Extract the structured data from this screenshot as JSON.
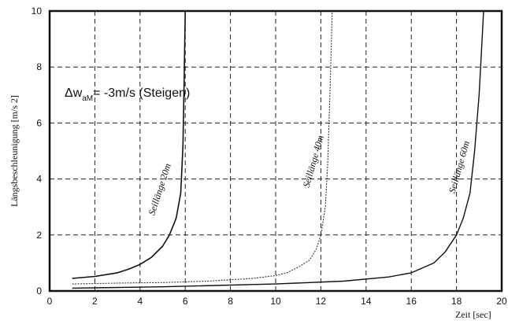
{
  "chart_data": {
    "type": "line",
    "title": "",
    "xlabel": "Zeit  [sec]",
    "ylabel": "Längsbeschleunigung [m/s  2]",
    "xlim": [
      0,
      20
    ],
    "ylim": [
      0,
      10
    ],
    "x_ticks": [
      "0",
      "2",
      "4",
      "6",
      "8",
      "10",
      "12",
      "14",
      "16",
      "18",
      "20"
    ],
    "y_ticks": [
      "0",
      "2",
      "4",
      "6",
      "8",
      "10"
    ],
    "grid": true,
    "annotation": {
      "delta": "Δw",
      "subscript": "aM",
      "rest": "= -3m/s (Steigen)"
    },
    "series": [
      {
        "name": "Seillänge 20m",
        "x": [
          1.0,
          2.0,
          3.0,
          3.5,
          4.0,
          4.5,
          5.0,
          5.3,
          5.6,
          5.8,
          5.9,
          5.95,
          6.0
        ],
        "y": [
          0.45,
          0.52,
          0.65,
          0.78,
          0.95,
          1.2,
          1.6,
          2.0,
          2.6,
          3.5,
          5.2,
          7.5,
          10.0
        ]
      },
      {
        "name": "Seillänge 40m",
        "x": [
          1.0,
          3.0,
          5.0,
          7.0,
          9.0,
          10.0,
          10.5,
          11.0,
          11.5,
          11.8,
          12.0,
          12.2,
          12.3,
          12.4,
          12.5
        ],
        "y": [
          0.25,
          0.28,
          0.3,
          0.35,
          0.45,
          0.55,
          0.65,
          0.85,
          1.1,
          1.5,
          2.0,
          3.0,
          4.5,
          7.0,
          10.0
        ]
      },
      {
        "name": "Seillänge 60m",
        "x": [
          1.0,
          5.0,
          10.0,
          13.0,
          15.0,
          16.0,
          17.0,
          17.5,
          18.0,
          18.3,
          18.6,
          18.8,
          19.0,
          19.1,
          19.2
        ],
        "y": [
          0.1,
          0.15,
          0.25,
          0.35,
          0.5,
          0.65,
          1.0,
          1.4,
          2.0,
          2.6,
          3.5,
          5.0,
          7.0,
          8.5,
          10.0
        ]
      }
    ]
  }
}
